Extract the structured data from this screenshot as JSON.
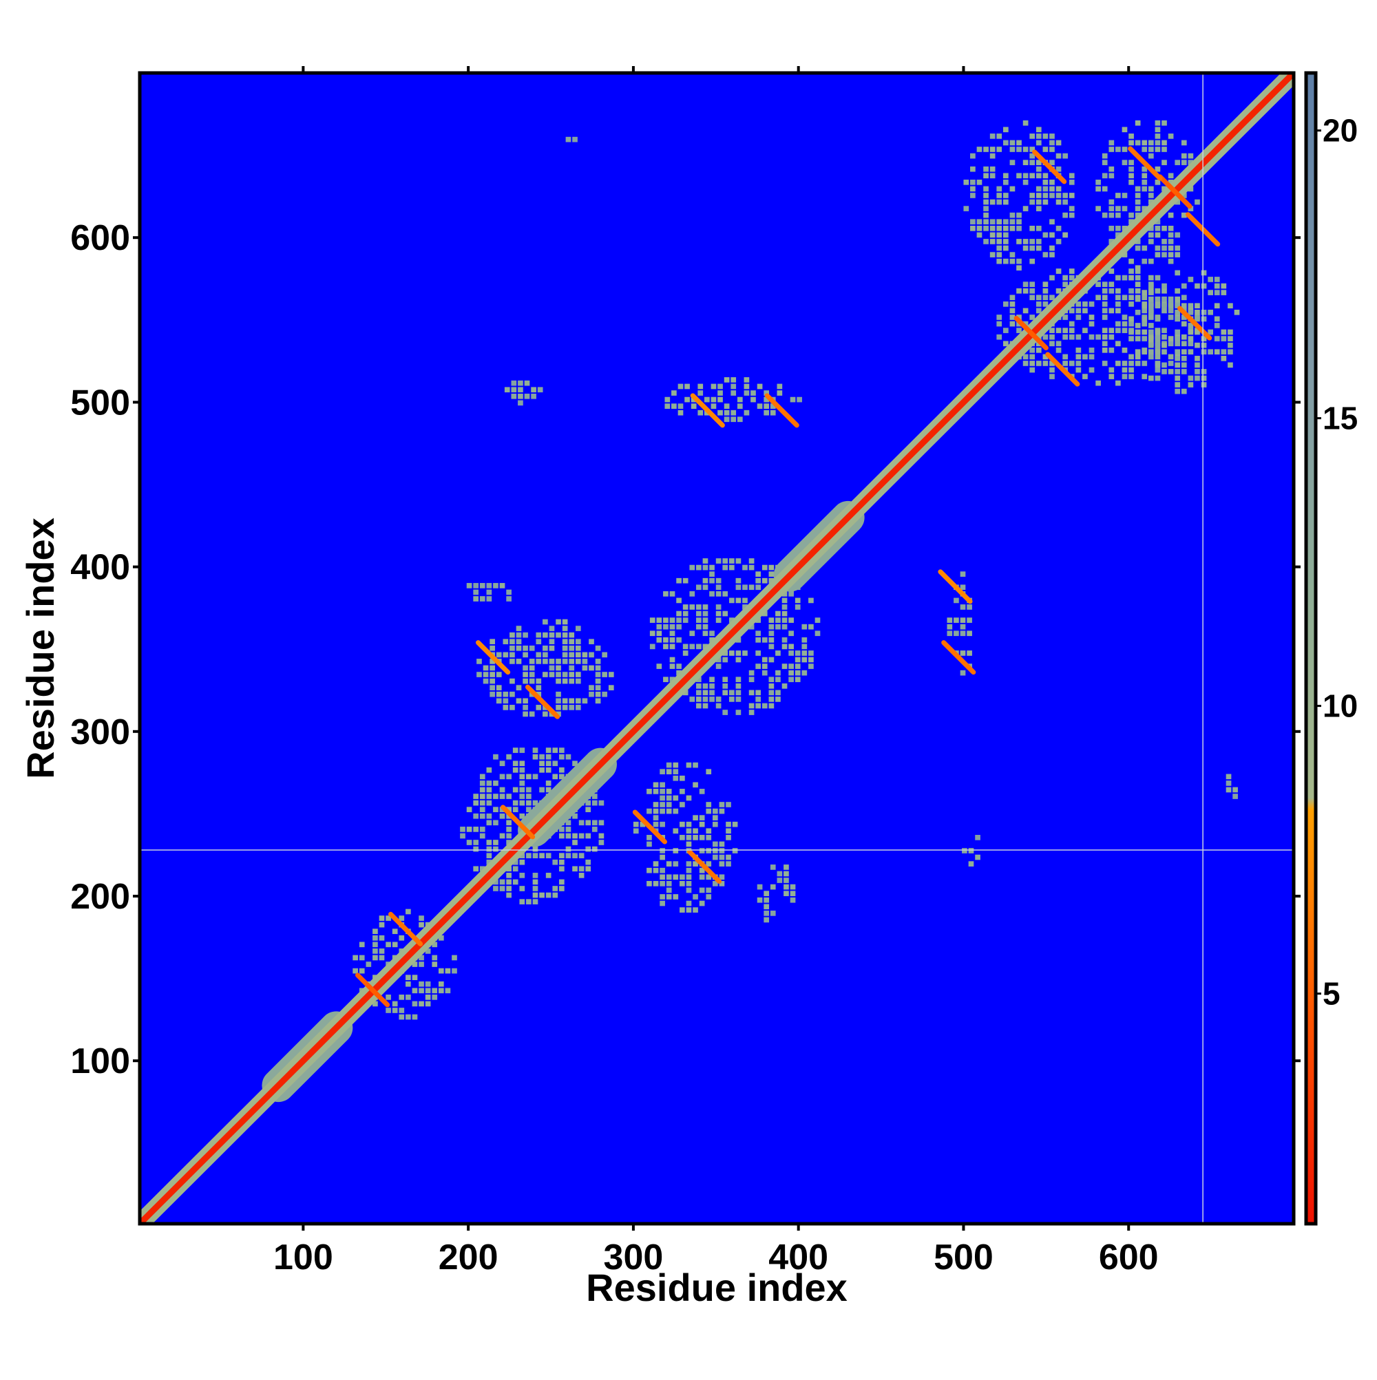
{
  "chart_data": {
    "type": "heatmap",
    "title": "",
    "xlabel": "Residue index",
    "ylabel": "Residue index",
    "xlim": [
      1,
      700
    ],
    "ylim": [
      1,
      700
    ],
    "x_ticks": [
      100,
      200,
      300,
      400,
      500,
      600
    ],
    "y_ticks": [
      100,
      200,
      300,
      400,
      500,
      600
    ],
    "colorbar": {
      "range": [
        1,
        21
      ],
      "ticks": [
        5,
        10,
        15,
        20
      ],
      "colors": [
        "#ee1100",
        "#ff5500",
        "#ffa000",
        "#a6b88a",
        "#8fae96",
        "#7f9aa8",
        "#5e7fa8"
      ],
      "stops": [
        0.0,
        0.18,
        0.36,
        0.37,
        0.55,
        0.75,
        1.0
      ]
    },
    "background_color": "#0000ff",
    "background_value": 21,
    "diagonal": {
      "from": 1,
      "to": 700,
      "value": 2
    },
    "thick_diagonal_segments": [
      {
        "from": 85,
        "to": 120,
        "value": 13
      },
      {
        "from": 240,
        "to": 280,
        "value": 13
      },
      {
        "from": 395,
        "to": 430,
        "value": 13
      }
    ],
    "stripe_lines": [
      {
        "orientation": "horizontal",
        "residue": 228
      },
      {
        "orientation": "vertical",
        "residue": 645
      }
    ],
    "contact_clusters": [
      {
        "x": [
          130,
          190
        ],
        "y": [
          125,
          190
        ],
        "value": 12
      },
      {
        "x": [
          195,
          280
        ],
        "y": [
          195,
          290
        ],
        "value": 12
      },
      {
        "x": [
          300,
          360
        ],
        "y": [
          190,
          280
        ],
        "value": 12
      },
      {
        "x": [
          205,
          290
        ],
        "y": [
          305,
          365
        ],
        "value": 12
      },
      {
        "x": [
          195,
          225
        ],
        "y": [
          375,
          390
        ],
        "value": 13
      },
      {
        "x": [
          310,
          410
        ],
        "y": [
          310,
          405
        ],
        "value": 12
      },
      {
        "x": [
          375,
          395
        ],
        "y": [
          180,
          220
        ],
        "value": 13
      },
      {
        "x": [
          490,
          505
        ],
        "y": [
          330,
          400
        ],
        "value": 12
      },
      {
        "x": [
          495,
          510
        ],
        "y": [
          218,
          238
        ],
        "value": 13
      },
      {
        "x": [
          315,
          400
        ],
        "y": [
          488,
          512
        ],
        "value": 12
      },
      {
        "x": [
          218,
          245
        ],
        "y": [
          498,
          512
        ],
        "value": 13
      },
      {
        "x": [
          520,
          640
        ],
        "y": [
          510,
          580
        ],
        "value": 12
      },
      {
        "x": [
          580,
          640
        ],
        "y": [
          580,
          670
        ],
        "value": 12
      },
      {
        "x": [
          500,
          565
        ],
        "y": [
          580,
          670
        ],
        "value": 12
      },
      {
        "x": [
          600,
          665
        ],
        "y": [
          505,
          580
        ],
        "value": 12
      },
      {
        "x": [
          255,
          268
        ],
        "y": [
          654,
          662
        ],
        "value": 13
      },
      {
        "x": [
          655,
          665
        ],
        "y": [
          255,
          272
        ],
        "value": 13
      }
    ],
    "hotspots": [
      {
        "x": 142,
        "y": 143,
        "value": 5
      },
      {
        "x": 162,
        "y": 180,
        "value": 6
      },
      {
        "x": 215,
        "y": 345,
        "value": 7
      },
      {
        "x": 245,
        "y": 318,
        "value": 6
      },
      {
        "x": 230,
        "y": 245,
        "value": 6
      },
      {
        "x": 310,
        "y": 242,
        "value": 6
      },
      {
        "x": 343,
        "y": 218,
        "value": 6
      },
      {
        "x": 345,
        "y": 495,
        "value": 7
      },
      {
        "x": 390,
        "y": 495,
        "value": 6
      },
      {
        "x": 497,
        "y": 345,
        "value": 6
      },
      {
        "x": 495,
        "y": 388,
        "value": 7
      },
      {
        "x": 541,
        "y": 542,
        "value": 5
      },
      {
        "x": 560,
        "y": 520,
        "value": 6
      },
      {
        "x": 628,
        "y": 628,
        "value": 5
      },
      {
        "x": 610,
        "y": 645,
        "value": 6
      },
      {
        "x": 645,
        "y": 605,
        "value": 6
      },
      {
        "x": 552,
        "y": 643,
        "value": 6
      },
      {
        "x": 640,
        "y": 548,
        "value": 6
      }
    ]
  }
}
